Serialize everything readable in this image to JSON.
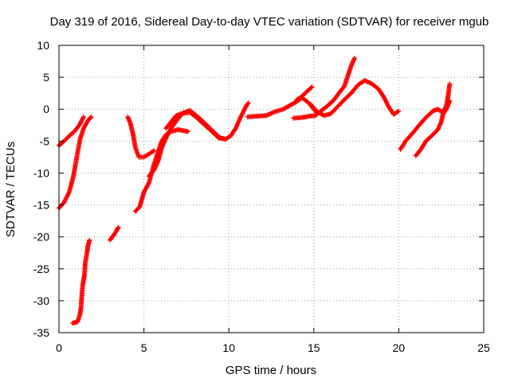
{
  "chart_data": {
    "type": "scatter",
    "title": "Day 319 of 2016, Sidereal Day-to-day VTEC variation (SDTVAR) for receiver mgub",
    "xlabel": "GPS time / hours",
    "ylabel": "SDTVAR / TECUs",
    "xlim": [
      0,
      25
    ],
    "ylim": [
      -35,
      10
    ],
    "xticks": [
      0,
      5,
      10,
      15,
      20,
      25
    ],
    "yticks": [
      -35,
      -30,
      -25,
      -20,
      -15,
      -10,
      -5,
      0,
      5,
      10
    ],
    "grid": true,
    "marker": "+",
    "color": "#ff0000",
    "series": [
      {
        "points": [
          [
            0.0,
            -5.7
          ],
          [
            0.3,
            -5.0
          ],
          [
            0.6,
            -4.2
          ],
          [
            0.9,
            -3.5
          ],
          [
            1.2,
            -2.5
          ],
          [
            1.45,
            -1.2
          ]
        ]
      },
      {
        "points": [
          [
            0.0,
            -15.5
          ],
          [
            0.3,
            -14.6
          ],
          [
            0.6,
            -13.0
          ],
          [
            0.85,
            -10.5
          ],
          [
            1.05,
            -7.5
          ],
          [
            1.25,
            -4.6
          ],
          [
            1.45,
            -3.0
          ],
          [
            1.7,
            -1.8
          ],
          [
            1.9,
            -1.2
          ]
        ]
      },
      {
        "points": [
          [
            0.8,
            -33.5
          ],
          [
            1.1,
            -33.3
          ],
          [
            1.25,
            -32.0
          ],
          [
            1.3,
            -31.0
          ],
          [
            1.35,
            -29.0
          ],
          [
            1.4,
            -27.5
          ],
          [
            1.5,
            -26.0
          ],
          [
            1.55,
            -24.0
          ],
          [
            1.65,
            -22.5
          ],
          [
            1.7,
            -21.5
          ],
          [
            1.8,
            -20.5
          ]
        ]
      },
      {
        "points": [
          [
            3.0,
            -20.5
          ],
          [
            3.2,
            -19.8
          ],
          [
            3.35,
            -19.2
          ],
          [
            3.5,
            -18.5
          ]
        ]
      },
      {
        "points": [
          [
            4.05,
            -1.2
          ],
          [
            4.2,
            -2.2
          ],
          [
            4.35,
            -3.8
          ],
          [
            4.5,
            -6.0
          ],
          [
            4.7,
            -7.5
          ],
          [
            5.0,
            -7.5
          ],
          [
            5.3,
            -7.0
          ],
          [
            5.6,
            -6.5
          ]
        ]
      },
      {
        "points": [
          [
            4.5,
            -16.0
          ],
          [
            4.75,
            -15.3
          ],
          [
            5.0,
            -13.0
          ],
          [
            5.3,
            -11.5
          ],
          [
            5.55,
            -9.0
          ],
          [
            5.8,
            -7.0
          ],
          [
            6.05,
            -5.0
          ],
          [
            6.3,
            -4.0
          ],
          [
            6.6,
            -3.5
          ],
          [
            7.0,
            -3.2
          ],
          [
            7.6,
            -3.5
          ]
        ]
      },
      {
        "points": [
          [
            5.3,
            -10.5
          ],
          [
            5.6,
            -9.5
          ],
          [
            5.85,
            -8.0
          ],
          [
            6.05,
            -6.0
          ],
          [
            6.3,
            -4.5
          ],
          [
            6.6,
            -3.0
          ],
          [
            7.0,
            -1.5
          ],
          [
            7.3,
            -0.6
          ],
          [
            7.7,
            -0.2
          ],
          [
            8.0,
            -0.8
          ],
          [
            8.3,
            -1.5
          ],
          [
            8.7,
            -2.5
          ],
          [
            9.2,
            -3.8
          ],
          [
            9.5,
            -4.5
          ],
          [
            9.8,
            -4.7
          ],
          [
            10.1,
            -4.2
          ],
          [
            10.4,
            -3.0
          ],
          [
            10.7,
            -1.2
          ],
          [
            11.0,
            0.4
          ],
          [
            11.15,
            1.0
          ]
        ]
      },
      {
        "points": [
          [
            6.3,
            -3.0
          ],
          [
            6.6,
            -2.0
          ],
          [
            6.9,
            -1.0
          ],
          [
            7.3,
            -0.6
          ],
          [
            7.7,
            -0.5
          ],
          [
            8.1,
            -1.3
          ],
          [
            8.5,
            -2.3
          ],
          [
            9.0,
            -3.5
          ],
          [
            9.4,
            -4.5
          ],
          [
            9.7,
            -4.6
          ]
        ]
      },
      {
        "points": [
          [
            11.1,
            -1.2
          ],
          [
            11.6,
            -1.1
          ],
          [
            12.2,
            -1.0
          ],
          [
            12.7,
            -0.4
          ],
          [
            13.2,
            0.0
          ],
          [
            13.6,
            0.6
          ],
          [
            14.0,
            1.2
          ],
          [
            14.3,
            1.8
          ],
          [
            14.7,
            1.0
          ],
          [
            15.0,
            0.0
          ],
          [
            15.2,
            -0.6
          ]
        ]
      },
      {
        "points": [
          [
            13.8,
            -1.4
          ],
          [
            14.3,
            -1.3
          ],
          [
            14.7,
            -1.1
          ],
          [
            15.1,
            -1.0
          ],
          [
            15.4,
            -0.3
          ],
          [
            15.8,
            0.5
          ],
          [
            16.2,
            1.5
          ],
          [
            16.5,
            2.6
          ],
          [
            16.8,
            3.6
          ],
          [
            17.0,
            5.2
          ],
          [
            17.2,
            6.8
          ],
          [
            17.4,
            8.0
          ]
        ]
      },
      {
        "points": [
          [
            14.0,
            1.5
          ],
          [
            14.3,
            2.0
          ],
          [
            14.6,
            2.8
          ],
          [
            14.9,
            3.5
          ]
        ]
      },
      {
        "points": [
          [
            14.8,
            0.8
          ],
          [
            15.2,
            -0.4
          ],
          [
            15.6,
            -1.0
          ],
          [
            16.0,
            -0.7
          ],
          [
            16.4,
            0.4
          ],
          [
            16.8,
            1.5
          ],
          [
            17.2,
            2.5
          ],
          [
            17.6,
            3.8
          ],
          [
            18.0,
            4.5
          ],
          [
            18.4,
            4.0
          ],
          [
            18.8,
            3.2
          ],
          [
            19.1,
            2.0
          ],
          [
            19.4,
            0.4
          ],
          [
            19.7,
            -0.8
          ],
          [
            20.0,
            -0.3
          ]
        ]
      },
      {
        "points": [
          [
            20.1,
            -6.3
          ],
          [
            20.4,
            -5.0
          ],
          [
            20.8,
            -3.8
          ],
          [
            21.2,
            -2.5
          ],
          [
            21.6,
            -1.3
          ],
          [
            22.0,
            -0.3
          ],
          [
            22.3,
            0.0
          ],
          [
            22.6,
            -0.5
          ],
          [
            22.8,
            0.5
          ],
          [
            22.9,
            2.0
          ],
          [
            23.0,
            4.0
          ]
        ]
      },
      {
        "points": [
          [
            21.0,
            -7.3
          ],
          [
            21.3,
            -6.3
          ],
          [
            21.6,
            -5.0
          ],
          [
            22.0,
            -4.0
          ],
          [
            22.3,
            -3.2
          ],
          [
            22.5,
            -2.0
          ],
          [
            22.6,
            -0.8
          ],
          [
            22.8,
            0.0
          ],
          [
            23.0,
            1.3
          ]
        ]
      }
    ]
  }
}
